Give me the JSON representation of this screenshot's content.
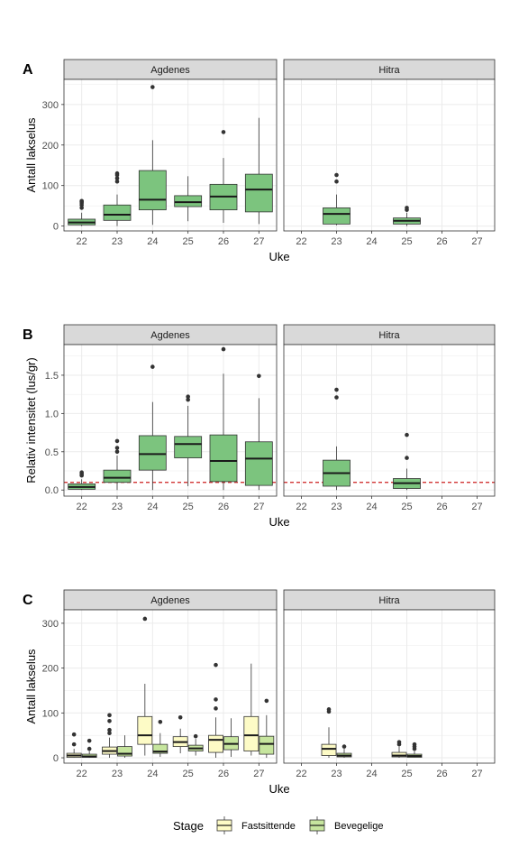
{
  "chart_data": [
    {
      "panel_label": "A",
      "type": "boxplot",
      "xlabel": "Uke",
      "ylabel": "Antall lakselus",
      "ylim": [
        -12,
        362
      ],
      "yticks": [
        0,
        100,
        200,
        300
      ],
      "categories": [
        "22",
        "23",
        "24",
        "25",
        "26",
        "27"
      ],
      "facets": [
        {
          "name": "Agdenes",
          "boxes": [
            {
              "x": "22",
              "min": 0,
              "q1": 3,
              "median": 9,
              "q3": 17,
              "max": 33,
              "outliers": [
                45,
                52,
                57,
                60,
                62
              ]
            },
            {
              "x": "23",
              "min": 0,
              "q1": 14,
              "median": 28,
              "q3": 52,
              "max": 78,
              "outliers": [
                110,
                118,
                126,
                130
              ]
            },
            {
              "x": "24",
              "min": 3,
              "q1": 40,
              "median": 65,
              "q3": 137,
              "max": 212,
              "outliers": [
                343
              ]
            },
            {
              "x": "25",
              "min": 12,
              "q1": 48,
              "median": 59,
              "q3": 75,
              "max": 123,
              "outliers": []
            },
            {
              "x": "26",
              "min": 8,
              "q1": 40,
              "median": 73,
              "q3": 103,
              "max": 168,
              "outliers": [
                232
              ]
            },
            {
              "x": "27",
              "min": 5,
              "q1": 35,
              "median": 90,
              "q3": 128,
              "max": 267,
              "outliers": []
            }
          ]
        },
        {
          "name": "Hitra",
          "boxes": [
            {
              "x": "23",
              "min": 2,
              "q1": 5,
              "median": 30,
              "q3": 45,
              "max": 78,
              "outliers": [
                110,
                126
              ]
            },
            {
              "x": "25",
              "min": 0,
              "q1": 5,
              "median": 13,
              "q3": 20,
              "max": 33,
              "outliers": [
                40,
                45
              ]
            }
          ]
        }
      ]
    },
    {
      "panel_label": "B",
      "type": "boxplot",
      "xlabel": "Uke",
      "ylabel": "Relativ intensitet (lus/gr)",
      "ylim": [
        -0.08,
        1.9
      ],
      "yticks": [
        "0.0",
        "0.5",
        "1.0",
        "1.5"
      ],
      "reference_line": {
        "y": 0.1,
        "color": "#cc1f1f",
        "style": "dashed"
      },
      "categories": [
        "22",
        "23",
        "24",
        "25",
        "26",
        "27"
      ],
      "facets": [
        {
          "name": "Agdenes",
          "boxes": [
            {
              "x": "22",
              "min": 0.0,
              "q1": 0.01,
              "median": 0.04,
              "q3": 0.08,
              "max": 0.14,
              "outliers": [
                0.19,
                0.21,
                0.23
              ]
            },
            {
              "x": "23",
              "min": 0.0,
              "q1": 0.1,
              "median": 0.16,
              "q3": 0.26,
              "max": 0.45,
              "outliers": [
                0.5,
                0.55,
                0.64
              ]
            },
            {
              "x": "24",
              "min": 0.0,
              "q1": 0.26,
              "median": 0.47,
              "q3": 0.71,
              "max": 1.15,
              "outliers": [
                1.61
              ]
            },
            {
              "x": "25",
              "min": 0.05,
              "q1": 0.42,
              "median": 0.6,
              "q3": 0.7,
              "max": 1.1,
              "outliers": [
                1.18,
                1.22
              ]
            },
            {
              "x": "26",
              "min": 0.0,
              "q1": 0.11,
              "median": 0.38,
              "q3": 0.72,
              "max": 1.52,
              "outliers": [
                1.84
              ]
            },
            {
              "x": "27",
              "min": 0.0,
              "q1": 0.06,
              "median": 0.41,
              "q3": 0.63,
              "max": 1.2,
              "outliers": [
                1.49
              ]
            }
          ]
        },
        {
          "name": "Hitra",
          "boxes": [
            {
              "x": "23",
              "min": 0.0,
              "q1": 0.05,
              "median": 0.22,
              "q3": 0.39,
              "max": 0.57,
              "outliers": [
                1.21,
                1.31
              ]
            },
            {
              "x": "25",
              "min": 0.0,
              "q1": 0.02,
              "median": 0.09,
              "q3": 0.15,
              "max": 0.28,
              "outliers": [
                0.42,
                0.72
              ]
            }
          ]
        }
      ]
    },
    {
      "panel_label": "C",
      "type": "grouped-boxplot",
      "xlabel": "Uke",
      "ylabel": "Antall lakselus",
      "ylim": [
        -12,
        330
      ],
      "yticks": [
        0,
        100,
        200,
        300
      ],
      "categories": [
        "22",
        "23",
        "24",
        "25",
        "26",
        "27"
      ],
      "legend": {
        "title": "Stage",
        "position": "bottom",
        "entries": [
          {
            "name": "Fastsittende",
            "color": "#fdfbc6"
          },
          {
            "name": "Bevegelige",
            "color": "#c6e59e"
          }
        ]
      },
      "facets": [
        {
          "name": "Agdenes",
          "boxes": [
            {
              "x": "22",
              "group": "Fastsittende",
              "min": 0,
              "q1": 1,
              "median": 5,
              "q3": 10,
              "max": 20,
              "outliers": [
                30,
                52
              ]
            },
            {
              "x": "22",
              "group": "Bevegelige",
              "min": 0,
              "q1": 1,
              "median": 3,
              "q3": 8,
              "max": 15,
              "outliers": [
                20,
                38
              ]
            },
            {
              "x": "23",
              "group": "Fastsittende",
              "min": 0,
              "q1": 8,
              "median": 15,
              "q3": 24,
              "max": 45,
              "outliers": [
                55,
                62,
                82,
                95
              ]
            },
            {
              "x": "23",
              "group": "Bevegelige",
              "min": 0,
              "q1": 4,
              "median": 9,
              "q3": 25,
              "max": 50,
              "outliers": []
            },
            {
              "x": "24",
              "group": "Fastsittende",
              "min": 5,
              "q1": 30,
              "median": 50,
              "q3": 92,
              "max": 165,
              "outliers": [
                310
              ]
            },
            {
              "x": "24",
              "group": "Bevegelige",
              "min": 2,
              "q1": 10,
              "median": 14,
              "q3": 30,
              "max": 55,
              "outliers": [
                80
              ]
            },
            {
              "x": "25",
              "group": "Fastsittende",
              "min": 10,
              "q1": 25,
              "median": 35,
              "q3": 47,
              "max": 65,
              "outliers": [
                90
              ]
            },
            {
              "x": "25",
              "group": "Bevegelige",
              "min": 5,
              "q1": 15,
              "median": 21,
              "q3": 28,
              "max": 42,
              "outliers": [
                48
              ]
            },
            {
              "x": "26",
              "group": "Fastsittende",
              "min": 0,
              "q1": 12,
              "median": 40,
              "q3": 50,
              "max": 90,
              "outliers": [
                110,
                130,
                207
              ]
            },
            {
              "x": "26",
              "group": "Bevegelige",
              "min": 2,
              "q1": 18,
              "median": 31,
              "q3": 47,
              "max": 88,
              "outliers": []
            },
            {
              "x": "27",
              "group": "Fastsittende",
              "min": 5,
              "q1": 15,
              "median": 50,
              "q3": 92,
              "max": 210,
              "outliers": []
            },
            {
              "x": "27",
              "group": "Bevegelige",
              "min": 0,
              "q1": 8,
              "median": 31,
              "q3": 48,
              "max": 95,
              "outliers": [
                127
              ]
            }
          ]
        },
        {
          "name": "Hitra",
          "boxes": [
            {
              "x": "23",
              "group": "Fastsittende",
              "min": 0,
              "q1": 5,
              "median": 20,
              "q3": 30,
              "max": 68,
              "outliers": [
                103,
                108
              ]
            },
            {
              "x": "23",
              "group": "Bevegelige",
              "min": 0,
              "q1": 2,
              "median": 5,
              "q3": 10,
              "max": 20,
              "outliers": [
                25
              ]
            },
            {
              "x": "25",
              "group": "Fastsittende",
              "min": 0,
              "q1": 2,
              "median": 5,
              "q3": 12,
              "max": 25,
              "outliers": [
                30,
                35
              ]
            },
            {
              "x": "25",
              "group": "Bevegelige",
              "min": 0,
              "q1": 1,
              "median": 4,
              "q3": 8,
              "max": 15,
              "outliers": [
                20,
                25,
                30
              ]
            }
          ]
        }
      ]
    }
  ],
  "colors": {
    "box_fill": "#7cc47e",
    "fastsittende_fill": "#fdfbc6",
    "bevegelige_fill": "#c6e59e",
    "strip_fill": "#d9d9d9",
    "grid": "#ebebeb",
    "reference_line": "#cc1f1f"
  }
}
